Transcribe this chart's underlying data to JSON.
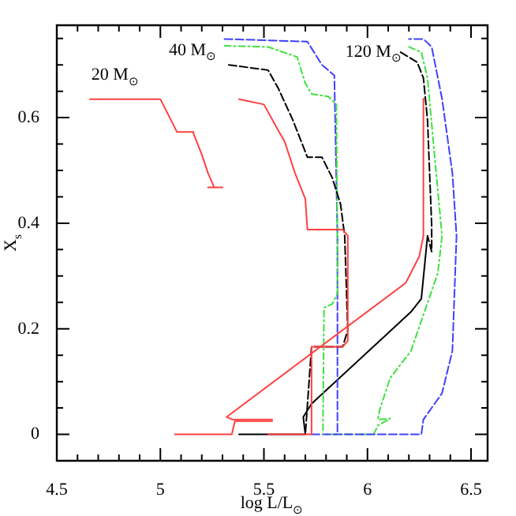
{
  "chart_data": {
    "type": "line",
    "xlabel": "log L/L$_{⊙}$",
    "ylabel": "X$_{s}$",
    "xlim": [
      4.5,
      6.58
    ],
    "ylim": [
      -0.05,
      0.775
    ],
    "xticks": [
      4.5,
      {
        "value": 4.6,
        "label": null
      },
      {
        "value": 4.7,
        "label": null
      },
      {
        "value": 4.8,
        "label": null
      },
      {
        "value": 4.9,
        "label": null
      },
      5,
      {
        "value": 5.1,
        "label": null
      },
      {
        "value": 5.2,
        "label": null
      },
      {
        "value": 5.3,
        "label": null
      },
      {
        "value": 5.4,
        "label": null
      },
      5.5,
      {
        "value": 5.6,
        "label": null
      },
      {
        "value": 5.7,
        "label": null
      },
      {
        "value": 5.8,
        "label": null
      },
      {
        "value": 5.9,
        "label": null
      },
      6,
      {
        "value": 6.1,
        "label": null
      },
      {
        "value": 6.2,
        "label": null
      },
      {
        "value": 6.3,
        "label": null
      },
      {
        "value": 6.4,
        "label": null
      },
      6.5
    ],
    "yticks": [
      0,
      {
        "value": 0.05,
        "label": null
      },
      {
        "value": 0.1,
        "label": null
      },
      {
        "value": 0.15,
        "label": null
      },
      0.2,
      {
        "value": 0.25,
        "label": null
      },
      {
        "value": 0.3,
        "label": null
      },
      {
        "value": 0.35,
        "label": null
      },
      0.4,
      {
        "value": 0.45,
        "label": null
      },
      {
        "value": 0.5,
        "label": null
      },
      {
        "value": 0.55,
        "label": null
      },
      0.6,
      {
        "value": 0.65,
        "label": null
      },
      {
        "value": 0.7,
        "label": null
      },
      {
        "value": 0.75,
        "label": null
      }
    ],
    "marker": "none",
    "grid": false,
    "legend": false,
    "annotations": [
      "20 M$_{⊙}$",
      "40 M$_{⊙}$",
      "120 M$_{⊙}$"
    ],
    "series": [
      {
        "color": "#ff4040",
        "line_style": "solid",
        "x": [
          4.66,
          5.0,
          5.08,
          5.16,
          5.16,
          5.2,
          5.23,
          5.26,
          5.23,
          5.3
        ],
        "values": [
          0.635,
          0.635,
          0.573,
          0.573,
          0.57,
          0.53,
          0.495,
          0.468,
          0.468,
          0.468
        ]
      },
      {
        "color": "#ff4040",
        "line_style": "solid",
        "x": [
          5.38,
          5.5,
          5.57,
          5.6,
          5.65,
          5.7,
          5.71,
          5.88,
          5.905,
          5.905,
          5.88,
          5.73,
          5.73,
          5.52
        ],
        "values": [
          0.635,
          0.625,
          0.575,
          0.555,
          0.495,
          0.446,
          0.388,
          0.388,
          0.376,
          0.177,
          0.166,
          0.166,
          0,
          0
        ]
      },
      {
        "color": "#ff4040",
        "line_style": "solid",
        "x": [
          6.27,
          6.27,
          6.25,
          6.185,
          5.32,
          5.35,
          5.54
        ],
        "values": [
          0.636,
          0.376,
          0.337,
          0.287,
          0.033,
          0.028,
          0.028
        ]
      },
      {
        "color": "#ff4040",
        "line_style": "solid",
        "x": [
          5.07,
          5.345,
          5.36,
          5.54
        ],
        "values": [
          0,
          0,
          0.025,
          0.025
        ]
      },
      {
        "color": "#000000",
        "line_style": "dashed",
        "x": [
          5.33,
          5.52,
          5.57,
          5.64,
          5.69,
          5.71,
          5.78,
          5.83,
          5.87,
          5.89,
          5.905,
          5.88,
          5.73,
          5.7
        ],
        "values": [
          0.7,
          0.69,
          0.655,
          0.595,
          0.545,
          0.525,
          0.525,
          0.486,
          0.436,
          0.376,
          0.197,
          0.166,
          0.166,
          0
        ]
      },
      {
        "color": "#40e040",
        "line_style": "dotted",
        "x": [
          5.31,
          5.52,
          5.66,
          5.7,
          5.73,
          5.81,
          5.85,
          5.855,
          5.855,
          5.83,
          5.79,
          5.785
        ],
        "values": [
          0.736,
          0.734,
          0.715,
          0.665,
          0.645,
          0.64,
          0.625,
          0.346,
          0.267,
          0.247,
          0.24,
          0
        ]
      },
      {
        "color": "#4040ff",
        "line_style": "dashed",
        "x": [
          5.31,
          5.71,
          5.78,
          5.84,
          5.855,
          5.855
        ],
        "values": [
          0.749,
          0.744,
          0.7,
          0.68,
          0.376,
          0
        ]
      },
      {
        "color": "#4040ff",
        "line_style": "dashed",
        "x": [
          5.73,
          6.26,
          6.27,
          6.36,
          6.41,
          6.43,
          6.41,
          6.36,
          6.31,
          6.27,
          6.2
        ],
        "values": [
          0,
          0,
          0.028,
          0.078,
          0.158,
          0.376,
          0.495,
          0.636,
          0.734,
          0.749,
          0.749
        ]
      },
      {
        "color": "#40e040",
        "line_style": "dotted",
        "x": [
          6.2,
          6.26,
          6.29,
          6.32,
          6.36,
          6.34,
          6.21,
          6.11,
          6.06,
          6.05,
          6.11,
          6.05,
          6.03,
          5.8
        ],
        "values": [
          0.734,
          0.724,
          0.675,
          0.545,
          0.376,
          0.306,
          0.158,
          0.107,
          0.048,
          0.028,
          0.03,
          0.017,
          0,
          0
        ]
      },
      {
        "color": "#000000",
        "line_style": "dashed",
        "x": [
          6.16,
          6.24,
          6.27,
          6.29,
          6.31,
          6.31,
          6.29
        ],
        "values": [
          0.724,
          0.705,
          0.675,
          0.595,
          0.396,
          0.346,
          0.376
        ]
      },
      {
        "color": "#000000",
        "line_style": "solid",
        "x": [
          6.29,
          6.26,
          6.21,
          5.73,
          5.69,
          5.7,
          5.38
        ],
        "values": [
          0.376,
          0.257,
          0.232,
          0.058,
          0.033,
          0,
          0
        ]
      }
    ]
  }
}
